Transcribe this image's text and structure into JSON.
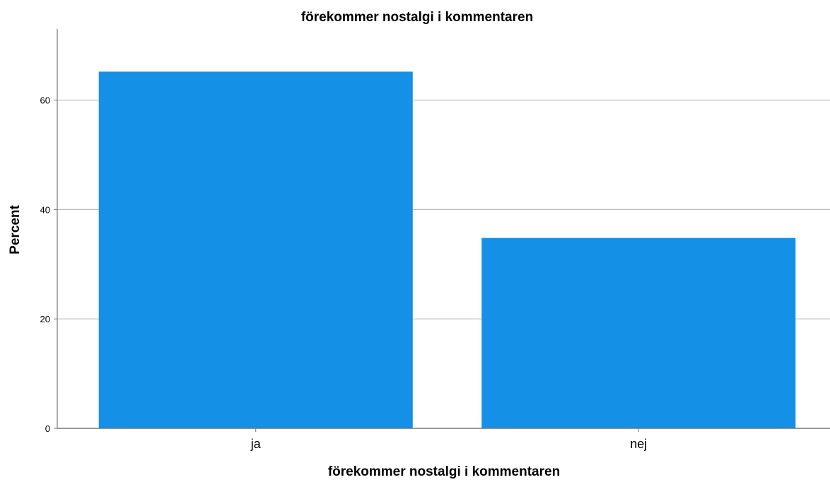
{
  "chart_data": {
    "type": "bar",
    "title": "förekommer nostalgi i kommentaren",
    "xlabel": "förekommer nostalgi i kommentaren",
    "ylabel": "Percent",
    "categories": [
      "ja",
      "nej"
    ],
    "values": [
      65.2,
      34.8
    ],
    "ylim": [
      0,
      73
    ],
    "yticks": [
      0,
      20,
      40,
      60
    ],
    "grid": true,
    "bar_color": "#1490E6",
    "grid_color": "#BDBDBD",
    "axis_color": "#777777"
  }
}
